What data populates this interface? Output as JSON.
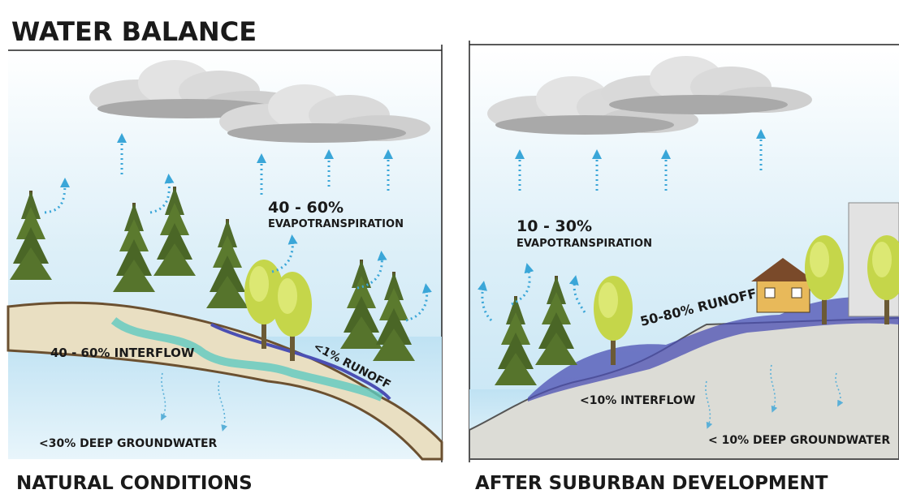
{
  "header": {
    "title": "WATER BALANCE"
  },
  "panels": [
    {
      "caption": "NATURAL CONDITIONS",
      "labels": [
        "40 - 60%",
        "EVAPOTRANSPIRATION",
        "40 - 60% INTERFLOW",
        "<1% RUNOFF",
        "<30% DEEP GROUNDWATER"
      ]
    },
    {
      "caption": "AFTER SUBURBAN DEVELOPMENT",
      "labels": [
        "10 - 30%",
        "EVAPOTRANSPIRATION",
        "50-80% RUNOFF",
        "<10% INTERFLOW",
        "< 10% DEEP GROUNDWATER"
      ]
    }
  ]
}
